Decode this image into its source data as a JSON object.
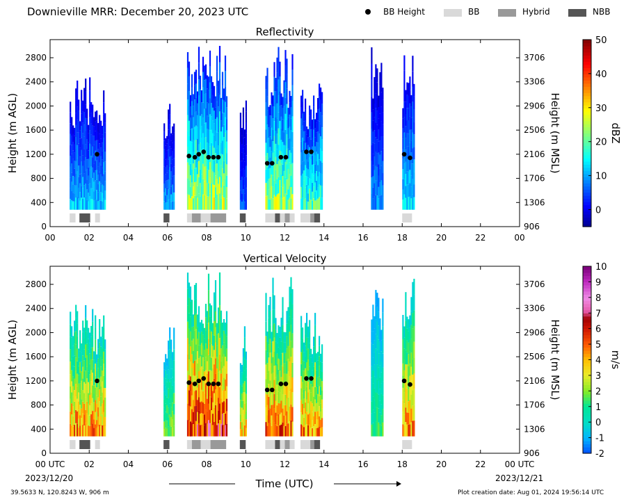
{
  "figure": {
    "title": "Downieville MRR:  December 20, 2023 UTC",
    "footer_location": "39.5633 N, 120.8243 W, 906 m",
    "footer_created": "Plot creation date: Aug 01, 2024 19:56:14 UTC",
    "time_axis_label": "Time (UTC)",
    "start_date": "2023/12/20",
    "end_date": "2023/12/21"
  },
  "legend": [
    {
      "label": "BB Height",
      "kind": "dot",
      "color": "#000000"
    },
    {
      "label": "BB",
      "kind": "box",
      "color": "#d9d9d9"
    },
    {
      "label": "Hybrid",
      "kind": "box",
      "color": "#999999"
    },
    {
      "label": "NBB",
      "kind": "box",
      "color": "#555555"
    }
  ],
  "chart_data": [
    {
      "type": "heatmap",
      "title": "Reflectivity",
      "xlabel": "",
      "ylabel": "Height (m AGL)",
      "ylabel_right": "Height (m MSL)",
      "xlim": [
        0,
        24
      ],
      "ylim": [
        0,
        3100
      ],
      "x_ticks": [
        "00",
        "02",
        "04",
        "06",
        "08",
        "10",
        "12",
        "14",
        "16",
        "18",
        "20",
        "22",
        "00"
      ],
      "y_ticks": [
        0,
        400,
        800,
        1200,
        1600,
        2000,
        2400,
        2800
      ],
      "y_ticks_right": [
        "906",
        "1306",
        "1706",
        "2106",
        "2506",
        "2906",
        "3306",
        "3706"
      ],
      "colorbar": {
        "label": "dBZ",
        "range": [
          -5,
          50
        ],
        "ticks": [
          0,
          10,
          20,
          30,
          40,
          50
        ]
      },
      "echo_columns": [
        {
          "start": 1.0,
          "end": 2.8,
          "top": 2500,
          "peak": 16
        },
        {
          "start": 5.8,
          "end": 6.3,
          "top": 2100,
          "peak": 14
        },
        {
          "start": 7.0,
          "end": 9.0,
          "top": 3000,
          "peak": 32
        },
        {
          "start": 9.7,
          "end": 10.0,
          "top": 2200,
          "peak": 8
        },
        {
          "start": 11.0,
          "end": 12.4,
          "top": 3000,
          "peak": 30
        },
        {
          "start": 12.8,
          "end": 13.9,
          "top": 2400,
          "peak": 24
        },
        {
          "start": 16.4,
          "end": 17.0,
          "top": 3000,
          "peak": 12
        },
        {
          "start": 18.0,
          "end": 18.6,
          "top": 3000,
          "peak": 18
        }
      ],
      "bb_height": [
        {
          "t": 2.4,
          "h": 1200
        },
        {
          "t": 7.1,
          "h": 1170
        },
        {
          "t": 7.4,
          "h": 1150
        },
        {
          "t": 7.6,
          "h": 1200
        },
        {
          "t": 7.85,
          "h": 1240
        },
        {
          "t": 8.1,
          "h": 1150
        },
        {
          "t": 8.35,
          "h": 1150
        },
        {
          "t": 8.6,
          "h": 1150
        },
        {
          "t": 11.1,
          "h": 1050
        },
        {
          "t": 11.35,
          "h": 1050
        },
        {
          "t": 11.8,
          "h": 1150
        },
        {
          "t": 12.05,
          "h": 1150
        },
        {
          "t": 13.1,
          "h": 1240
        },
        {
          "t": 13.35,
          "h": 1240
        },
        {
          "t": 18.1,
          "h": 1200
        },
        {
          "t": 18.4,
          "h": 1140
        }
      ],
      "bb_type": [
        {
          "start": 1.0,
          "end": 1.3,
          "type": "BB"
        },
        {
          "start": 1.5,
          "end": 2.05,
          "type": "NBB"
        },
        {
          "start": 2.3,
          "end": 2.55,
          "type": "BB"
        },
        {
          "start": 5.8,
          "end": 6.1,
          "type": "NBB"
        },
        {
          "start": 7.0,
          "end": 7.25,
          "type": "BB"
        },
        {
          "start": 7.25,
          "end": 7.7,
          "type": "Hybrid"
        },
        {
          "start": 7.7,
          "end": 8.2,
          "type": "BB"
        },
        {
          "start": 8.2,
          "end": 9.0,
          "type": "Hybrid"
        },
        {
          "start": 9.7,
          "end": 10.0,
          "type": "NBB"
        },
        {
          "start": 11.0,
          "end": 11.5,
          "type": "BB"
        },
        {
          "start": 11.5,
          "end": 11.75,
          "type": "NBB"
        },
        {
          "start": 11.75,
          "end": 12.0,
          "type": "BB"
        },
        {
          "start": 12.0,
          "end": 12.25,
          "type": "Hybrid"
        },
        {
          "start": 12.25,
          "end": 12.5,
          "type": "BB"
        },
        {
          "start": 12.8,
          "end": 13.3,
          "type": "BB"
        },
        {
          "start": 13.3,
          "end": 13.5,
          "type": "Hybrid"
        },
        {
          "start": 13.5,
          "end": 13.8,
          "type": "NBB"
        },
        {
          "start": 18.0,
          "end": 18.5,
          "type": "BB"
        }
      ]
    },
    {
      "type": "heatmap",
      "title": "Vertical Velocity",
      "xlabel": "Time (UTC)",
      "ylabel": "Height (m AGL)",
      "ylabel_right": "Height (m MSL)",
      "xlim": [
        0,
        24
      ],
      "ylim": [
        0,
        3100
      ],
      "x_ticks": [
        "00 UTC",
        "02",
        "04",
        "06",
        "08",
        "10",
        "12",
        "14",
        "16",
        "18",
        "20",
        "22",
        "00 UTC"
      ],
      "y_ticks": [
        0,
        400,
        800,
        1200,
        1600,
        2000,
        2400,
        2800
      ],
      "y_ticks_right": [
        "906",
        "1306",
        "1706",
        "2106",
        "2506",
        "2906",
        "3306",
        "3706"
      ],
      "colorbar": {
        "label": "m/s",
        "range": [
          -2,
          10
        ],
        "ticks": [
          -2,
          -1,
          0,
          1,
          2,
          3,
          4,
          5,
          6,
          7,
          8,
          9,
          10
        ]
      },
      "echo_columns": [
        {
          "start": 1.0,
          "end": 2.8,
          "top": 2500,
          "peak": 6
        },
        {
          "start": 5.8,
          "end": 6.3,
          "top": 2100,
          "peak": 3
        },
        {
          "start": 7.0,
          "end": 9.0,
          "top": 3000,
          "peak": 8
        },
        {
          "start": 9.7,
          "end": 10.0,
          "top": 2200,
          "peak": 5
        },
        {
          "start": 11.0,
          "end": 12.4,
          "top": 3000,
          "peak": 6.5
        },
        {
          "start": 12.8,
          "end": 13.9,
          "top": 2400,
          "peak": 6
        },
        {
          "start": 16.4,
          "end": 17.0,
          "top": 3000,
          "peak": 2
        },
        {
          "start": 18.0,
          "end": 18.6,
          "top": 3000,
          "peak": 6
        }
      ],
      "bb_height": [
        {
          "t": 2.4,
          "h": 1200
        },
        {
          "t": 7.1,
          "h": 1170
        },
        {
          "t": 7.4,
          "h": 1150
        },
        {
          "t": 7.6,
          "h": 1200
        },
        {
          "t": 7.85,
          "h": 1240
        },
        {
          "t": 8.1,
          "h": 1150
        },
        {
          "t": 8.35,
          "h": 1150
        },
        {
          "t": 8.6,
          "h": 1150
        },
        {
          "t": 11.1,
          "h": 1050
        },
        {
          "t": 11.35,
          "h": 1050
        },
        {
          "t": 11.8,
          "h": 1150
        },
        {
          "t": 12.05,
          "h": 1150
        },
        {
          "t": 13.1,
          "h": 1240
        },
        {
          "t": 13.35,
          "h": 1240
        },
        {
          "t": 18.1,
          "h": 1200
        },
        {
          "t": 18.4,
          "h": 1140
        }
      ],
      "bb_type": [
        {
          "start": 1.0,
          "end": 1.3,
          "type": "BB"
        },
        {
          "start": 1.5,
          "end": 2.05,
          "type": "NBB"
        },
        {
          "start": 2.3,
          "end": 2.55,
          "type": "BB"
        },
        {
          "start": 5.8,
          "end": 6.1,
          "type": "NBB"
        },
        {
          "start": 7.0,
          "end": 7.25,
          "type": "BB"
        },
        {
          "start": 7.25,
          "end": 7.7,
          "type": "Hybrid"
        },
        {
          "start": 7.7,
          "end": 8.2,
          "type": "BB"
        },
        {
          "start": 8.2,
          "end": 9.0,
          "type": "Hybrid"
        },
        {
          "start": 9.7,
          "end": 10.0,
          "type": "NBB"
        },
        {
          "start": 11.0,
          "end": 11.5,
          "type": "BB"
        },
        {
          "start": 11.5,
          "end": 11.75,
          "type": "NBB"
        },
        {
          "start": 11.75,
          "end": 12.0,
          "type": "BB"
        },
        {
          "start": 12.0,
          "end": 12.25,
          "type": "Hybrid"
        },
        {
          "start": 12.25,
          "end": 12.5,
          "type": "BB"
        },
        {
          "start": 12.8,
          "end": 13.3,
          "type": "BB"
        },
        {
          "start": 13.3,
          "end": 13.5,
          "type": "Hybrid"
        },
        {
          "start": 13.5,
          "end": 13.8,
          "type": "NBB"
        },
        {
          "start": 18.0,
          "end": 18.5,
          "type": "BB"
        }
      ]
    }
  ]
}
